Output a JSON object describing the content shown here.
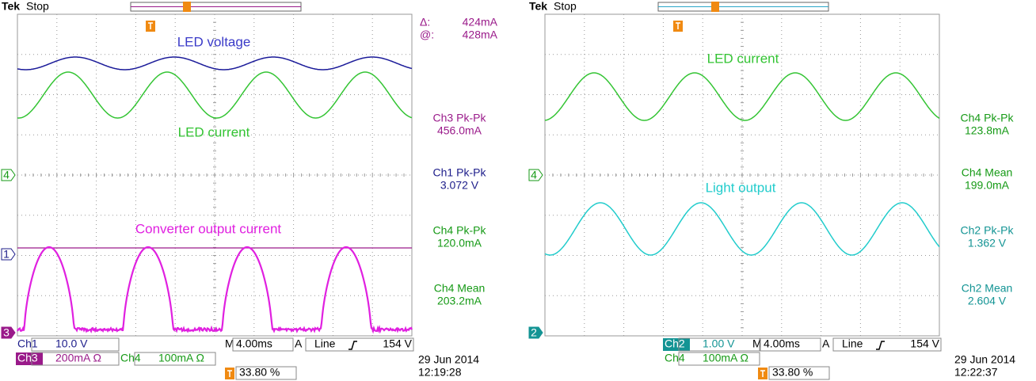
{
  "panels": [
    {
      "brand": "Tek",
      "status": "Stop",
      "cursor": {
        "delta_label": "Δ:",
        "delta": "424mA",
        "at_label": "@:",
        "at": "428mA"
      },
      "trace_labels": [
        "LED voltage",
        "LED current",
        "Converter output current"
      ],
      "markers": [
        "4",
        "1",
        "3"
      ],
      "measurements": [
        {
          "label": "Ch3 Pk-Pk",
          "value": "456.0mA"
        },
        {
          "label": "Ch1 Pk-Pk",
          "value": "3.072 V"
        },
        {
          "label": "Ch4 Pk-Pk",
          "value": "120.0mA"
        },
        {
          "label": "Ch4 Mean",
          "value": "203.2mA"
        }
      ],
      "channels": [
        {
          "name": "Ch1",
          "scale": "10.0 V"
        },
        {
          "name": "Ch3",
          "scale": "200mA Ω"
        },
        {
          "name": "Ch4",
          "scale": "100mA Ω"
        }
      ],
      "timebase_label": "M",
      "timebase": "4.00ms",
      "trigger_source": "A",
      "trigger_coupling": "Line",
      "trigger_level": "154 V",
      "trigger_position": "33.80 %",
      "date": "29 Jun 2014",
      "time": "12:19:28"
    },
    {
      "brand": "Tek",
      "status": "Stop",
      "trace_labels": [
        "LED current",
        "Light output"
      ],
      "markers": [
        "4",
        "2"
      ],
      "measurements": [
        {
          "label": "Ch4 Pk-Pk",
          "value": "123.8mA"
        },
        {
          "label": "Ch4 Mean",
          "value": "199.0mA"
        },
        {
          "label": "Ch2 Pk-Pk",
          "value": "1.362 V"
        },
        {
          "label": "Ch2 Mean",
          "value": "2.604 V"
        }
      ],
      "channels": [
        {
          "name": "Ch2",
          "scale": "1.00 V"
        },
        {
          "name": "Ch4",
          "scale": "100mA Ω"
        }
      ],
      "timebase_label": "M",
      "timebase": "4.00ms",
      "trigger_source": "A",
      "trigger_coupling": "Line",
      "trigger_level": "154 V",
      "trigger_position": "33.80 %",
      "date": "29 Jun 2014",
      "time": "12:22:37"
    }
  ]
}
